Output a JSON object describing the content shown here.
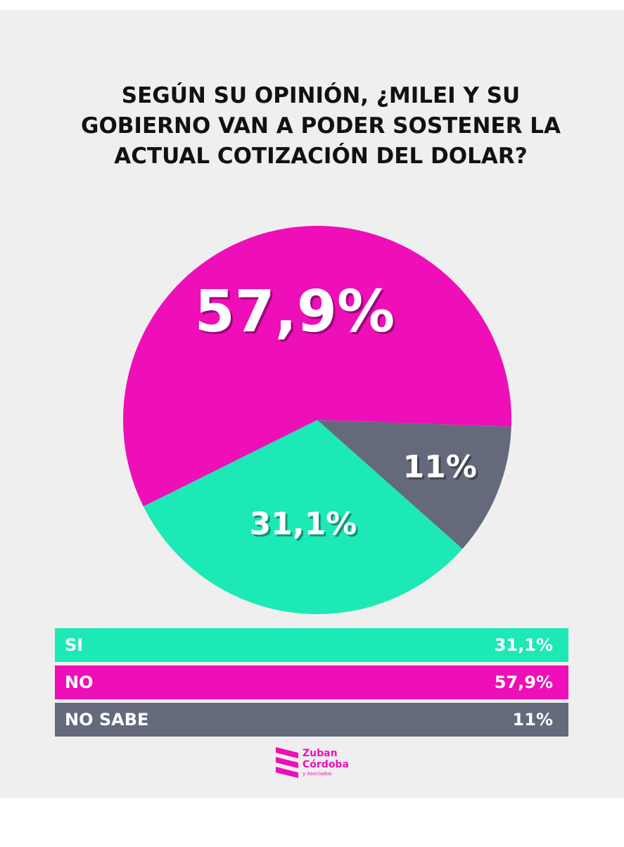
{
  "chart_data": {
    "type": "pie",
    "title": [
      "SEGÚN SU OPINIÓN, ¿MILEI Y SU",
      "GOBIERNO VAN A PODER SOSTENER LA",
      "ACTUAL COTIZACIÓN DEL DOLAR?"
    ],
    "categories": [
      "SI",
      "NO",
      "NO SABE"
    ],
    "values": [
      31.1,
      57.9,
      11
    ],
    "value_labels": [
      "31,1%",
      "57,9%",
      "11%"
    ],
    "colors": [
      "#1de9b6",
      "#ee0fb8",
      "#646a7c"
    ]
  },
  "logo": {
    "line1": "Zuban",
    "line2": "Córdoba",
    "line3": "y Asociados"
  }
}
